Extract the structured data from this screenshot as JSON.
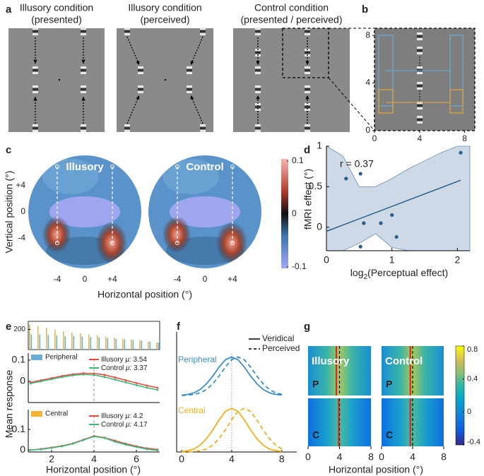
{
  "panel_labels": [
    "a",
    "b",
    "c",
    "d",
    "e",
    "f",
    "g"
  ],
  "panel_a": {
    "titles": [
      [
        "Illusory condition",
        "(presented)"
      ],
      [
        "Illusory condition",
        "(perceived)"
      ],
      [
        "Control condition",
        "(presented / perceived)"
      ]
    ]
  },
  "panel_b": {
    "xlim": [
      0,
      8.9
    ],
    "ylim": [
      0,
      8.6
    ],
    "xticks": [
      0,
      4,
      8
    ],
    "yticks": [
      0,
      4,
      8
    ]
  },
  "panel_c": {
    "titles": [
      "Illusory",
      "Control"
    ],
    "xlabel": "Horizontal position (°)",
    "ylabel": "Vertical position (°)",
    "xlim": [
      -8.2,
      8.2
    ],
    "ylim": [
      -8.6,
      8.6
    ],
    "xticks": [
      -4,
      0,
      {
        "value": 4,
        "label": "+4"
      }
    ],
    "yticks": [
      {
        "value": 4,
        "label": "+4"
      },
      0,
      -4
    ],
    "clim": [
      -0.1,
      0.1
    ],
    "cticks": [
      0.1,
      0,
      -0.1
    ]
  },
  "chart_data": [
    {
      "type": "scatter",
      "annotation": "r = 0.37",
      "xlabel": [
        "log",
        "2",
        "(Perceptual effect)"
      ],
      "ylabel": "fMRI effect (°)",
      "xlim": [
        0,
        2.19
      ],
      "ylim": [
        -0.29,
        1
      ],
      "xticks": [
        0,
        1,
        2
      ],
      "yticks": [
        0,
        0.5,
        1
      ],
      "color": "#2b5f8a",
      "band_color": "#cdd9e6",
      "x": [
        0.3,
        0.52,
        0.57,
        0.52,
        0.83,
        1.0,
        1.07,
        2.05
      ],
      "values": [
        0.6,
        0.66,
        0.05,
        -0.24,
        0.05,
        0.15,
        -0.12,
        0.92
      ],
      "fit": {
        "x": [
          0,
          2.05
        ],
        "y": [
          -0.05,
          0.58
        ]
      },
      "ci": {
        "x": [
          0,
          0.25,
          0.5,
          0.75,
          1,
          1.25,
          1.5,
          1.75,
          2,
          2.19
        ],
        "upper": [
          1,
          0.88,
          0.5,
          0.5,
          0.6,
          0.72,
          0.82,
          0.92,
          1,
          1
        ],
        "lower": [
          -0.29,
          -0.29,
          -0.2,
          -0.08,
          -0.25,
          -0.29,
          -0.29,
          -0.29,
          -0.29,
          -0.29
        ]
      }
    },
    {
      "type": "bar",
      "xlim": [
        0.9,
        7.1
      ],
      "ylim": [
        0,
        280
      ],
      "yticks": [
        200
      ],
      "x": [
        1.0,
        1.4,
        1.8,
        2.2,
        2.6,
        3.0,
        3.4,
        3.8,
        4.2,
        4.6,
        5.0,
        5.4,
        5.8,
        6.2,
        6.6,
        7.0
      ],
      "series": [
        {
          "color": "#f2b632",
          "values": [
            250,
            235,
            215,
            195,
            180,
            170,
            160,
            150,
            140,
            130,
            120,
            110,
            100,
            90,
            80,
            70
          ]
        },
        {
          "color": "#6baed6",
          "values": [
            150,
            150,
            145,
            140,
            135,
            135,
            130,
            125,
            120,
            115,
            105,
            100,
            95,
            90,
            80,
            70
          ]
        }
      ]
    },
    {
      "type": "line",
      "legend": "Peripheral",
      "legend_color": "#6baed6",
      "ylabel": "Mean response",
      "mu_symbol": "μ:",
      "marker_x": 4,
      "xlim": [
        0.9,
        7.1
      ],
      "ylim": [
        -0.1,
        0.133
      ],
      "yticks": [
        0,
        0.1
      ],
      "x": [
        1,
        1.5,
        2,
        2.5,
        3,
        3.5,
        4,
        4.5,
        5,
        5.5,
        6,
        6.5,
        7
      ],
      "series": [
        {
          "name": "Illusory",
          "color": "#e8473c",
          "mu": 3.54,
          "values": [
            -0.005,
            0.005,
            0.015,
            0.025,
            0.033,
            0.038,
            0.037,
            0.03,
            0.018,
            0.005,
            -0.008,
            -0.02,
            -0.03
          ]
        },
        {
          "name": "Control",
          "color": "#3cb878",
          "mu": 3.37,
          "values": [
            -0.01,
            0,
            0.01,
            0.02,
            0.028,
            0.032,
            0.03,
            0.02,
            0.008,
            -0.005,
            -0.018,
            -0.03,
            -0.04
          ]
        }
      ]
    },
    {
      "type": "line",
      "legend": "Central",
      "legend_color": "#f2b632",
      "xlabel": "Horizontal position (°)",
      "mu_symbol": "μ:",
      "marker_x": 4,
      "xlim": [
        0.9,
        7.1
      ],
      "ylim": [
        -0.01,
        0.197
      ],
      "yticks": [
        0,
        0.1
      ],
      "xticks": [
        2,
        4,
        6
      ],
      "x": [
        1,
        1.5,
        2,
        2.5,
        3,
        3.5,
        4,
        4.5,
        5,
        5.5,
        6,
        6.5,
        7
      ],
      "series": [
        {
          "name": "Illusory",
          "color": "#e8473c",
          "mu": 4.2,
          "values": [
            0.0,
            0.005,
            0.012,
            0.02,
            0.032,
            0.05,
            0.068,
            0.06,
            0.045,
            0.03,
            0.018,
            0.008,
            0.002
          ]
        },
        {
          "name": "Control",
          "color": "#3cb878",
          "mu": 4.17,
          "values": [
            0.0,
            0.003,
            0.01,
            0.018,
            0.03,
            0.048,
            0.066,
            0.058,
            0.04,
            0.026,
            0.014,
            0.004,
            -0.002
          ]
        }
      ]
    },
    {
      "type": "curves",
      "legend": [
        "Veridical",
        "Perceived"
      ],
      "reference_x": 4,
      "xlim": [
        -0.4,
        9.2
      ],
      "ylim": [
        0,
        1.1
      ],
      "xticks": [
        0,
        4,
        8
      ],
      "x": [
        0,
        0.5,
        1,
        1.5,
        2,
        2.5,
        3,
        3.5,
        4,
        4.5,
        5,
        5.5,
        6,
        6.5,
        7,
        7.5,
        8
      ],
      "series": [
        {
          "name": "Peripheral",
          "color": "#3d8fcb",
          "veridical": [
            0.01,
            0.03,
            0.07,
            0.16,
            0.31,
            0.51,
            0.74,
            0.93,
            1,
            0.93,
            0.74,
            0.51,
            0.31,
            0.16,
            0.07,
            0.03,
            0.01
          ],
          "perceived": [
            0,
            0.01,
            0.03,
            0.07,
            0.16,
            0.31,
            0.51,
            0.74,
            0.93,
            1,
            0.93,
            0.74,
            0.51,
            0.31,
            0.16,
            0.07,
            0.03
          ]
        },
        {
          "name": "Central",
          "color": "#eeb01e",
          "veridical": [
            0.01,
            0.03,
            0.07,
            0.16,
            0.31,
            0.51,
            0.74,
            0.93,
            1,
            0.93,
            0.74,
            0.51,
            0.31,
            0.16,
            0.07,
            0.03,
            0.01
          ],
          "perceived": [
            0,
            0,
            0.01,
            0.03,
            0.07,
            0.16,
            0.31,
            0.51,
            0.74,
            0.93,
            1,
            0.93,
            0.74,
            0.51,
            0.31,
            0.16,
            0.07
          ]
        }
      ]
    },
    {
      "type": "heatmap",
      "panels": [
        "Illusory",
        "Control"
      ],
      "rows": [
        "P",
        "C"
      ],
      "peaks": [
        [
          3.6,
          3.9
        ],
        [
          3.7,
          3.7
        ]
      ],
      "reference_x": 4,
      "xlim": [
        0,
        8
      ],
      "xticks": [
        0,
        4,
        8
      ],
      "clim": [
        -0.4,
        0.8
      ],
      "cticks": [
        -0.4,
        0,
        0.4,
        0.8
      ],
      "xlabel": "Horizontal position (°)"
    }
  ]
}
